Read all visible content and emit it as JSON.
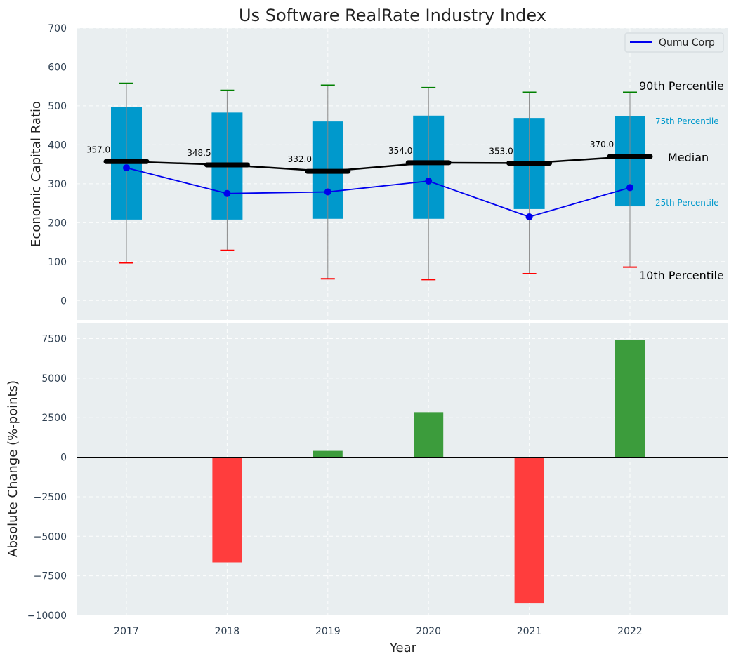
{
  "title": "Us Software RealRate Industry Index",
  "colors": {
    "panel_bg": "#e9eef0",
    "box": "#0099cc",
    "median": "#000000",
    "company": "#0000ee",
    "p90_cap": "#008000",
    "p10_cap": "#ff0000",
    "whisker": "#888888",
    "pos_bar": "#3c9c3c",
    "neg_bar": "#ff3d3d"
  },
  "annotations": {
    "p90": "90th Percentile",
    "p75": "75th Percentile",
    "median": "Median",
    "p25": "25th Percentile",
    "p10": "10th Percentile"
  },
  "chart_data": [
    {
      "type": "box",
      "ylabel": "Economic Capital Ratio",
      "ylim": [
        -50,
        700
      ],
      "yticks": [
        0,
        100,
        200,
        300,
        400,
        500,
        600,
        700
      ],
      "categories": [
        "2017",
        "2018",
        "2019",
        "2020",
        "2021",
        "2022"
      ],
      "p10": [
        97,
        129,
        56,
        54,
        69,
        86
      ],
      "p25": [
        208,
        208,
        210,
        210,
        235,
        242
      ],
      "median": [
        357.0,
        348.5,
        332.0,
        354.0,
        353.0,
        370.0
      ],
      "median_labels": [
        "357.0",
        "348.5",
        "332.0",
        "354.0",
        "353.0",
        "370.0"
      ],
      "p75": [
        497,
        483,
        460,
        475,
        469,
        474
      ],
      "p90": [
        558,
        540,
        553,
        547,
        535,
        535
      ],
      "series": [
        {
          "name": "Qumu Corp",
          "values": [
            341,
            275,
            279,
            307,
            215,
            290
          ]
        }
      ],
      "legend": "top-right",
      "grid": true
    },
    {
      "type": "bar",
      "xlabel": "Year",
      "ylabel": "Absolute Change (%-points)",
      "ylim": [
        -10000,
        8500
      ],
      "yticks": [
        -10000,
        -7500,
        -5000,
        -2500,
        0,
        2500,
        5000,
        7500
      ],
      "categories": [
        "2017",
        "2018",
        "2019",
        "2020",
        "2021",
        "2022"
      ],
      "values": [
        0,
        -6650,
        400,
        2850,
        -9250,
        7400
      ],
      "grid": true
    }
  ]
}
